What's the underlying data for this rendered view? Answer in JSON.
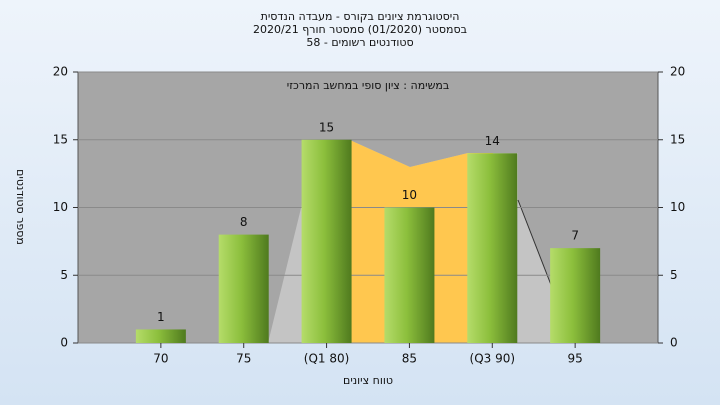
{
  "chart_data": {
    "type": "bar",
    "title": "היסטוגרמת ציונים בקורס - מעבדה הנדסית",
    "subtitle": "בסמסטר  (01/2020)  סמסטר חורף  2020/21",
    "subtitle2": "סטודנטים רשומים - 58",
    "annotation": "במשימה : ציון סופי במחשב המרכזי",
    "x_label": "טווח ציונים",
    "y_label": "מספר סטודנטים",
    "categories": [
      "70",
      "75",
      "(Q1 80)",
      "85",
      "(Q3 90)",
      "95"
    ],
    "values": [
      1,
      8,
      15,
      10,
      14,
      7
    ],
    "color": "#8dc63f",
    "ylim": [
      0,
      20
    ],
    "yticks": [
      0,
      5,
      10,
      15,
      20
    ],
    "y2lim": [
      0,
      20
    ],
    "y2ticks": [
      0,
      5,
      10,
      15,
      20
    ],
    "grid": true
  }
}
